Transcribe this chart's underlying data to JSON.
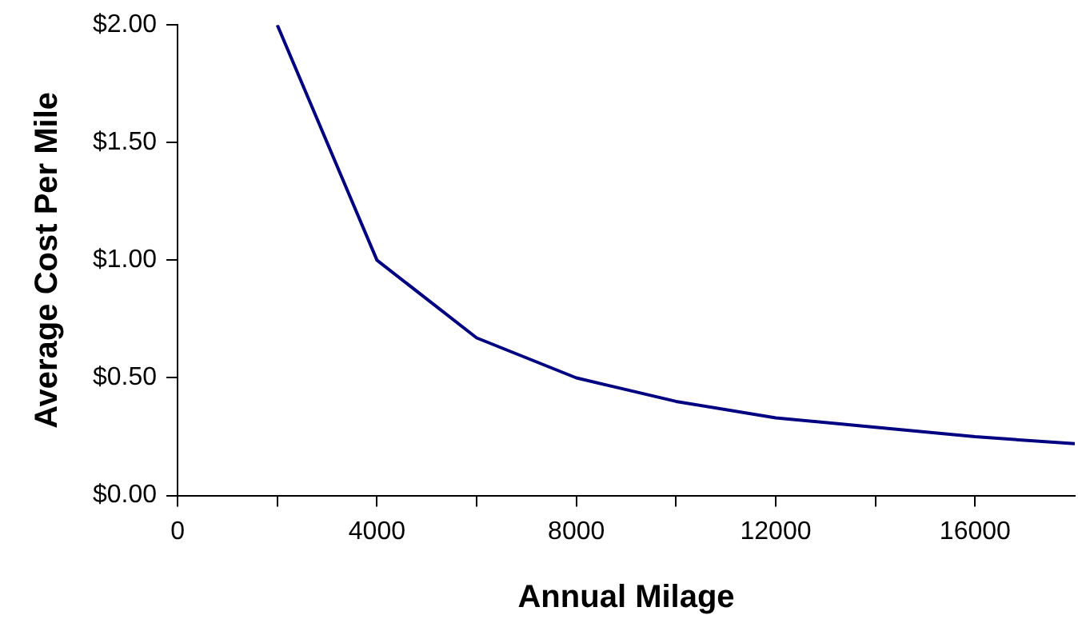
{
  "chart_data": {
    "type": "line",
    "xlabel": "Annual Milage",
    "ylabel": "Average Cost Per Mile",
    "x": [
      2000,
      4000,
      6000,
      8000,
      10000,
      12000,
      14000,
      16000,
      18000
    ],
    "series": [
      {
        "color": "#000080",
        "values": [
          2.0,
          1.0,
          0.67,
          0.5,
          0.4,
          0.33,
          0.29,
          0.25,
          0.22
        ]
      }
    ],
    "xlim": [
      0,
      18000
    ],
    "xticks": [
      0,
      {
        "value": 2000,
        "label": null
      },
      4000,
      {
        "value": 6000,
        "label": null
      },
      8000,
      {
        "value": 10000,
        "label": null
      },
      12000,
      {
        "value": 14000,
        "label": null
      },
      16000
    ],
    "ylim": [
      0,
      2
    ],
    "yticks": [
      {
        "value": 0,
        "label": "$0.00"
      },
      {
        "value": 0.5,
        "label": "$0.50"
      },
      {
        "value": 1,
        "label": "$1.00"
      },
      {
        "value": 1.5,
        "label": "$1.50"
      },
      {
        "value": 2,
        "label": "$2.00"
      }
    ],
    "grid": false,
    "legend": false,
    "marker": "none",
    "line_style": "solid"
  }
}
